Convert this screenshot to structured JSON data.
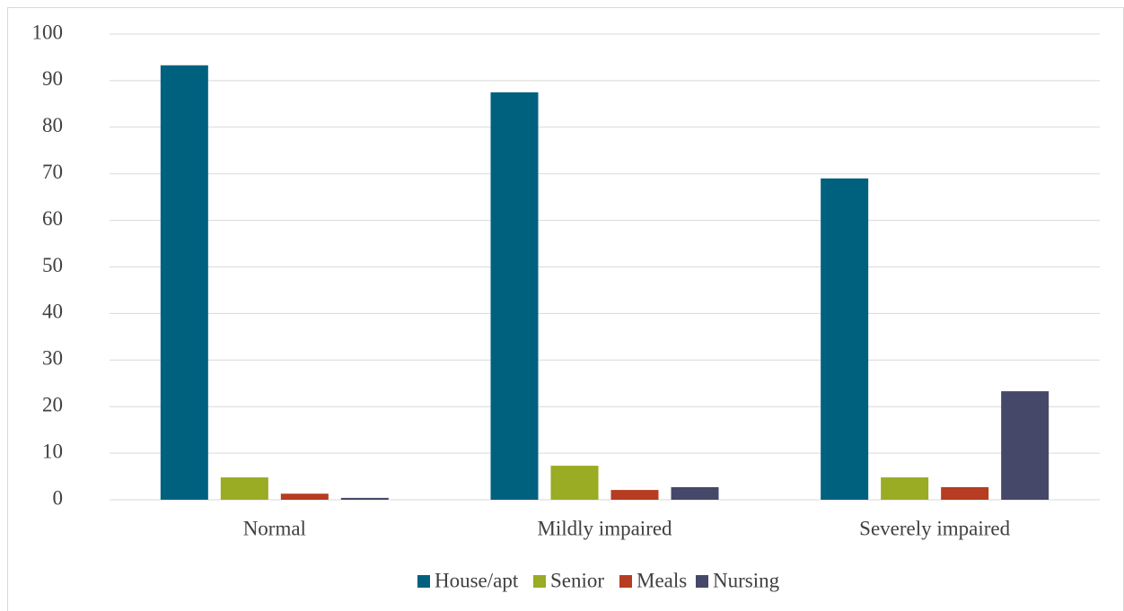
{
  "chart_data": {
    "type": "bar",
    "categories": [
      "Normal",
      "Mildly impaired",
      "Severely impaired"
    ],
    "series": [
      {
        "name": "House/apt",
        "color": "#00617f",
        "values": [
          93.3,
          87.5,
          69.0
        ]
      },
      {
        "name": "Senior",
        "color": "#9aab24",
        "values": [
          4.8,
          7.3,
          4.8
        ]
      },
      {
        "name": "Meals",
        "color": "#b63c22",
        "values": [
          1.3,
          2.1,
          2.7
        ]
      },
      {
        "name": "Nursing",
        "color": "#454868",
        "values": [
          0.4,
          2.7,
          23.3
        ]
      }
    ],
    "ylim": [
      0,
      100
    ],
    "yticks": [
      0,
      10,
      20,
      30,
      40,
      50,
      60,
      70,
      80,
      90,
      100
    ],
    "grid": true,
    "legend": "bottom"
  }
}
